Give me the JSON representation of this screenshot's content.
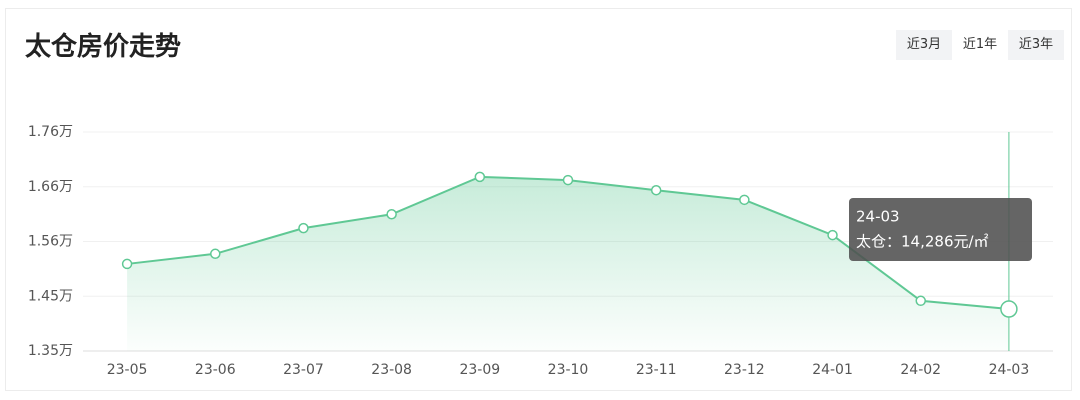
{
  "title": "太仓房价走势",
  "range_buttons": [
    "近3月",
    "近1年",
    "近3年"
  ],
  "selected_range": 1,
  "chart_data": {
    "type": "line",
    "categories": [
      "23-05",
      "23-06",
      "23-07",
      "23-08",
      "23-09",
      "23-10",
      "23-11",
      "23-12",
      "24-01",
      "24-02",
      "24-03"
    ],
    "series": [
      {
        "name": "太仓",
        "color": "#5fc894",
        "values": [
          1.513,
          1.532,
          1.58,
          1.606,
          1.676,
          1.67,
          1.651,
          1.633,
          1.567,
          1.444,
          1.4286
        ]
      }
    ],
    "ylim": [
      1.35,
      1.76
    ],
    "yticks": [
      {
        "value": 1.35,
        "label": "1.35万"
      },
      {
        "value": 1.4525,
        "label": "1.45万"
      },
      {
        "value": 1.555,
        "label": "1.56万"
      },
      {
        "value": 1.6575,
        "label": "1.66万"
      },
      {
        "value": 1.76,
        "label": "1.76万"
      }
    ],
    "grid": true,
    "area": true,
    "tooltip": {
      "x": "24-03",
      "label": "太仓：14,286元/㎡"
    }
  }
}
